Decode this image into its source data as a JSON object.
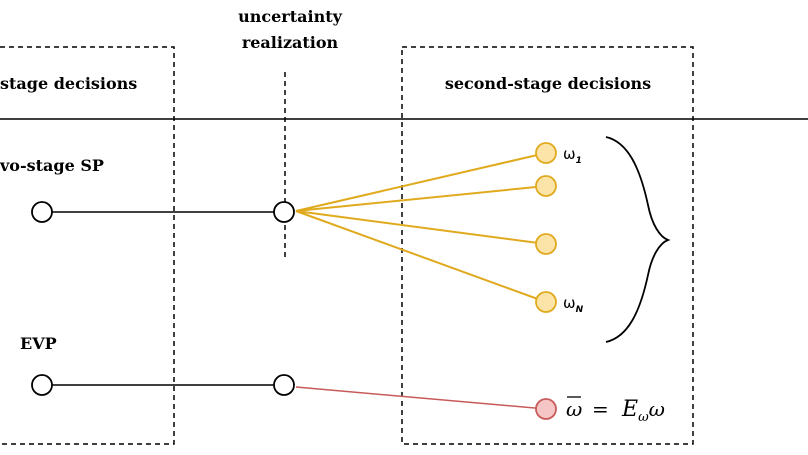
{
  "labels": {
    "uncertainty_line1": "uncertainty",
    "uncertainty_line2": "realization",
    "first_stage": "stage decisions",
    "second_stage": "second-stage decisions",
    "two_stage_sp": "vo-stage SP",
    "evp": "EVP"
  },
  "scenarios": {
    "first": {
      "symbol": "ω",
      "subscript": "1"
    },
    "last": {
      "symbol": "ω",
      "subscript": "N"
    }
  },
  "evp_formula": {
    "lhs": "ω",
    "equals": "=",
    "operator": "E",
    "operator_sub": "ω",
    "rhs": "ω"
  },
  "colors": {
    "scenario_line": "#e0aa1e",
    "scenario_node_fill": "#fce3a8",
    "scenario_node_stroke": "#e0aa1e",
    "evp_line": "#c85a5a",
    "evp_node_fill": "#f6c6c6",
    "evp_node_stroke": "#c85a5a",
    "line": "#000000"
  }
}
